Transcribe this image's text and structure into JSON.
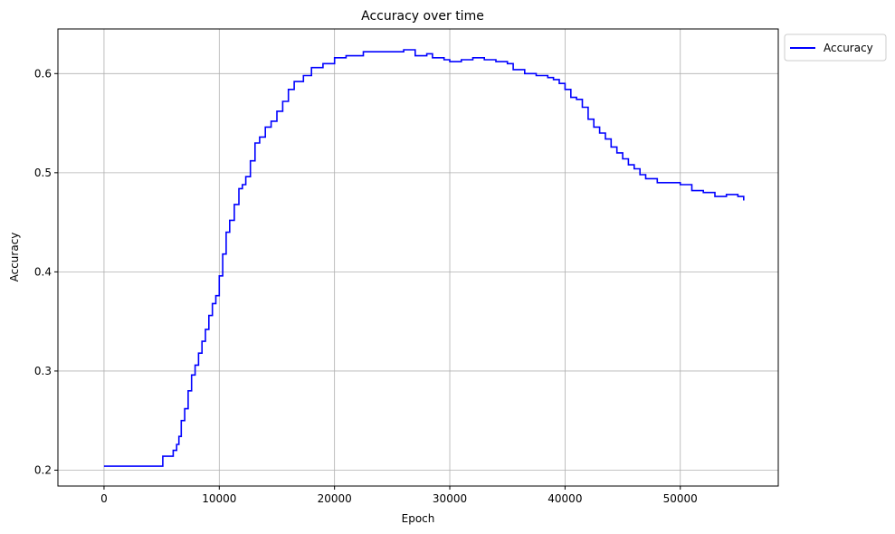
{
  "chart_data": {
    "type": "line",
    "title": "Accuracy over time",
    "xlabel": "Epoch",
    "ylabel": "Accuracy",
    "xlim": [
      -4000,
      58500
    ],
    "ylim": [
      0.184,
      0.645
    ],
    "xticks": [
      0,
      10000,
      20000,
      30000,
      40000,
      50000
    ],
    "xtick_labels": [
      "0",
      "10000",
      "20000",
      "30000",
      "40000",
      "50000"
    ],
    "yticks": [
      0.2,
      0.3,
      0.4,
      0.5,
      0.6
    ],
    "ytick_labels": [
      "0.2",
      "0.3",
      "0.4",
      "0.5",
      "0.6"
    ],
    "grid": true,
    "legend_position": "outside-top-right",
    "series": [
      {
        "name": "Accuracy",
        "color": "#0000ff",
        "step": true,
        "points": [
          [
            0,
            0.204
          ],
          [
            5000,
            0.204
          ],
          [
            5100,
            0.214
          ],
          [
            5800,
            0.214
          ],
          [
            6000,
            0.22
          ],
          [
            6300,
            0.226
          ],
          [
            6500,
            0.234
          ],
          [
            6700,
            0.25
          ],
          [
            7000,
            0.262
          ],
          [
            7300,
            0.28
          ],
          [
            7600,
            0.296
          ],
          [
            7900,
            0.306
          ],
          [
            8200,
            0.318
          ],
          [
            8500,
            0.33
          ],
          [
            8800,
            0.342
          ],
          [
            9100,
            0.356
          ],
          [
            9400,
            0.368
          ],
          [
            9700,
            0.376
          ],
          [
            10000,
            0.396
          ],
          [
            10300,
            0.418
          ],
          [
            10600,
            0.44
          ],
          [
            10900,
            0.452
          ],
          [
            11300,
            0.468
          ],
          [
            11700,
            0.484
          ],
          [
            12000,
            0.488
          ],
          [
            12300,
            0.496
          ],
          [
            12700,
            0.512
          ],
          [
            13100,
            0.53
          ],
          [
            13500,
            0.536
          ],
          [
            14000,
            0.546
          ],
          [
            14500,
            0.552
          ],
          [
            15000,
            0.562
          ],
          [
            15500,
            0.572
          ],
          [
            16000,
            0.584
          ],
          [
            16500,
            0.592
          ],
          [
            17300,
            0.598
          ],
          [
            18000,
            0.606
          ],
          [
            19000,
            0.61
          ],
          [
            20000,
            0.616
          ],
          [
            21000,
            0.618
          ],
          [
            22500,
            0.622
          ],
          [
            24000,
            0.622
          ],
          [
            25000,
            0.622
          ],
          [
            26000,
            0.624
          ],
          [
            27000,
            0.618
          ],
          [
            28000,
            0.62
          ],
          [
            28500,
            0.616
          ],
          [
            29500,
            0.614
          ],
          [
            30000,
            0.612
          ],
          [
            31000,
            0.614
          ],
          [
            32000,
            0.616
          ],
          [
            33000,
            0.614
          ],
          [
            34000,
            0.612
          ],
          [
            35000,
            0.61
          ],
          [
            35500,
            0.604
          ],
          [
            36500,
            0.6
          ],
          [
            37500,
            0.598
          ],
          [
            38500,
            0.596
          ],
          [
            39000,
            0.594
          ],
          [
            39500,
            0.59
          ],
          [
            40000,
            0.584
          ],
          [
            40500,
            0.576
          ],
          [
            41000,
            0.574
          ],
          [
            41500,
            0.566
          ],
          [
            42000,
            0.554
          ],
          [
            42500,
            0.546
          ],
          [
            43000,
            0.54
          ],
          [
            43500,
            0.534
          ],
          [
            44000,
            0.526
          ],
          [
            44500,
            0.52
          ],
          [
            45000,
            0.514
          ],
          [
            45500,
            0.508
          ],
          [
            46000,
            0.504
          ],
          [
            46500,
            0.498
          ],
          [
            47000,
            0.494
          ],
          [
            48000,
            0.49
          ],
          [
            49000,
            0.49
          ],
          [
            50000,
            0.488
          ],
          [
            51000,
            0.482
          ],
          [
            52000,
            0.48
          ],
          [
            53000,
            0.476
          ],
          [
            54000,
            0.478
          ],
          [
            55000,
            0.476
          ],
          [
            55500,
            0.472
          ]
        ]
      }
    ]
  }
}
